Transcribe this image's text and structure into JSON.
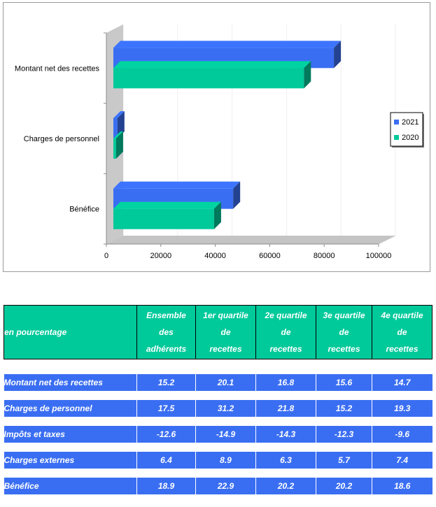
{
  "chart_data": {
    "type": "bar",
    "orientation": "horizontal",
    "categories": [
      "Montant net des recettes",
      "Charges de personnel",
      "Bénéfice"
    ],
    "series": [
      {
        "name": "2021",
        "color": "#3a6ef2",
        "values": [
          81000,
          1500,
          44000
        ]
      },
      {
        "name": "2020",
        "color": "#00c99a",
        "values": [
          70000,
          1000,
          37000
        ]
      }
    ],
    "xlim": [
      0,
      100000
    ],
    "xticks": [
      "0",
      "20000",
      "40000",
      "60000",
      "80000",
      "100000"
    ],
    "legend": [
      "2021",
      "2020"
    ],
    "legend_position": "right"
  },
  "table": {
    "header": [
      "en pourcentage",
      "Ensemble des adhérents",
      "1er quartile de recettes",
      "2e quartile de recettes",
      "3e quartile de recettes",
      "4e quartile de recettes"
    ],
    "header_lines": [
      [
        "Ensemble",
        "des",
        "adhérents"
      ],
      [
        "1er quartile",
        "de",
        "recettes"
      ],
      [
        "2e quartile",
        "de",
        "recettes"
      ],
      [
        "3e quartile",
        "de",
        "recettes"
      ],
      [
        "4e quartile",
        "de",
        "recettes"
      ]
    ],
    "rows": [
      {
        "label": "Montant net des recettes",
        "values": [
          "15.2",
          "20.1",
          "16.8",
          "15.6",
          "14.7"
        ]
      },
      {
        "label": "Charges de personnel",
        "values": [
          "17.5",
          "31.2",
          "21.8",
          "15.2",
          "19.3"
        ]
      },
      {
        "label": "Impôts et taxes",
        "values": [
          "-12.6",
          "-14.9",
          "-14.3",
          "-12.3",
          "-9.6"
        ]
      },
      {
        "label": "Charges externes",
        "values": [
          "6.4",
          "8.9",
          "6.3",
          "5.7",
          "7.4"
        ]
      },
      {
        "label": "Bénéfice",
        "values": [
          "18.9",
          "22.9",
          "20.2",
          "20.2",
          "18.6"
        ]
      }
    ]
  }
}
